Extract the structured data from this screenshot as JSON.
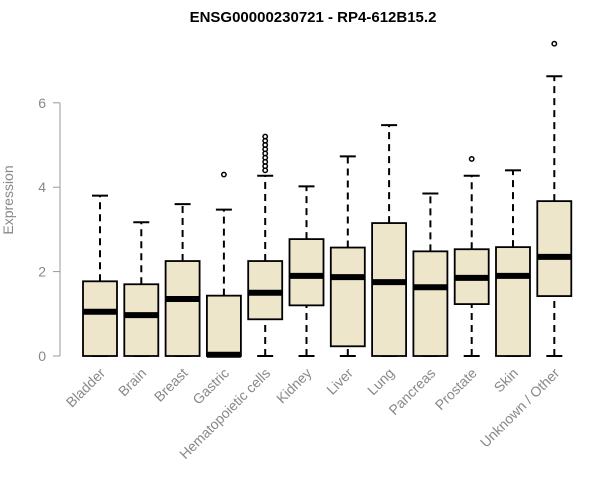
{
  "chart_data": {
    "type": "box",
    "title": "ENSG00000230721 - RP4-612B15.2",
    "xlabel": "",
    "ylabel": "Expression",
    "ylim": [
      0,
      7.5
    ],
    "yticks": [
      0,
      2,
      4,
      6
    ],
    "box_fill": "#ede6cb",
    "categories": [
      "Bladder",
      "Brain",
      "Breast",
      "Gastric",
      "Hematopoietic cells",
      "Kidney",
      "Liver",
      "Lung",
      "Pancreas",
      "Prostate",
      "Skin",
      "Unknown / Other"
    ],
    "series": [
      {
        "min": 0.0,
        "q1": 0.0,
        "median": 1.05,
        "q3": 1.77,
        "max": 3.8,
        "outliers": []
      },
      {
        "min": 0.0,
        "q1": 0.0,
        "median": 0.97,
        "q3": 1.7,
        "max": 3.17,
        "outliers": []
      },
      {
        "min": 0.0,
        "q1": 0.0,
        "median": 1.35,
        "q3": 2.25,
        "max": 3.6,
        "outliers": []
      },
      {
        "min": 0.0,
        "q1": 0.0,
        "median": 0.03,
        "q3": 1.43,
        "max": 3.47,
        "outliers": [
          4.3
        ]
      },
      {
        "min": 0.0,
        "q1": 0.87,
        "median": 1.5,
        "q3": 2.25,
        "max": 4.27,
        "outliers": [
          4.4,
          4.5,
          4.6,
          4.7,
          4.8,
          4.9,
          5.0,
          5.1,
          5.2
        ]
      },
      {
        "min": 0.0,
        "q1": 1.2,
        "median": 1.9,
        "q3": 2.77,
        "max": 4.02,
        "outliers": []
      },
      {
        "min": 0.0,
        "q1": 0.23,
        "median": 1.87,
        "q3": 2.57,
        "max": 4.73,
        "outliers": []
      },
      {
        "min": 0.0,
        "q1": 0.0,
        "median": 1.75,
        "q3": 3.15,
        "max": 5.47,
        "outliers": []
      },
      {
        "min": 0.0,
        "q1": 0.0,
        "median": 1.63,
        "q3": 2.48,
        "max": 3.85,
        "outliers": []
      },
      {
        "min": 0.0,
        "q1": 1.23,
        "median": 1.85,
        "q3": 2.53,
        "max": 4.27,
        "outliers": [
          4.67
        ]
      },
      {
        "min": 0.0,
        "q1": 0.0,
        "median": 1.9,
        "q3": 2.58,
        "max": 4.4,
        "outliers": []
      },
      {
        "min": 0.0,
        "q1": 1.42,
        "median": 2.35,
        "q3": 3.67,
        "max": 6.63,
        "outliers": [
          7.4
        ]
      }
    ]
  }
}
